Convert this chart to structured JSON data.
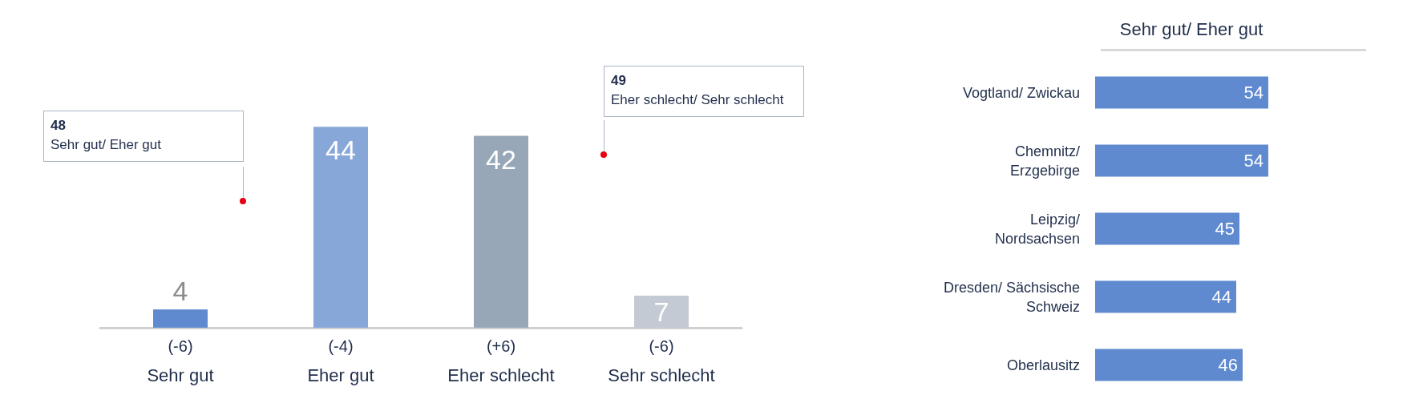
{
  "chart_data": [
    {
      "type": "bar",
      "categories": [
        "Sehr gut",
        "Eher gut",
        "Eher schlecht",
        "Sehr schlecht"
      ],
      "values": [
        4,
        44,
        42,
        7
      ],
      "colors": [
        "#5f8ad0",
        "#88a7d9",
        "#97a7b8",
        "#c4cad3"
      ],
      "data_labels": true,
      "tick_labels": "x",
      "annotations": [
        "48\nSehr gut/ Eher gut",
        "49\nEher schlecht/ Sehr schlecht",
        "(-6)",
        "(-4)",
        "(+6)",
        "(-6)"
      ]
    },
    {
      "type": "bar",
      "orientation": "horizontal",
      "title": "Sehr gut/ Eher gut",
      "categories": [
        "Vogtland/ Zwickau",
        "Chemnitz/ Erzgebirge",
        "Leipzig/ Nordsachsen",
        "Dresden/ Sächsische Schweiz",
        "Oberlausitz"
      ],
      "values": [
        54,
        54,
        45,
        44,
        46
      ],
      "color": "#5f8ad0",
      "data_labels": true,
      "tick_labels": "y"
    }
  ]
}
